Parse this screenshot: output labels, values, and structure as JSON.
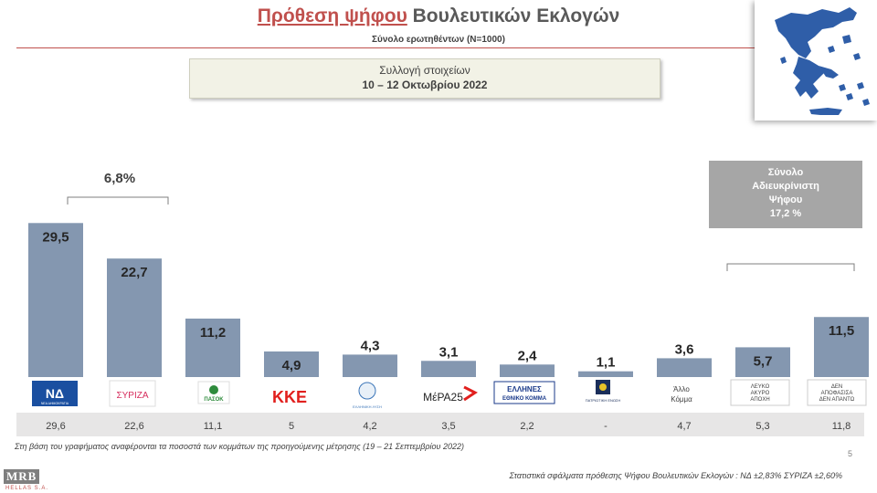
{
  "header": {
    "title_highlight": "Πρόθεση ψήφου",
    "title_rest": " Βουλευτικών Εκλογών",
    "subtitle": "Σύνολο ερωτηθέντων (N=1000)"
  },
  "collection_box": {
    "line1": "Συλλογή στοιχείων",
    "line2": "10 – 12 Οκτωβρίου 2022"
  },
  "annotations": {
    "gap_label": "6,8%",
    "undecided_box": [
      "Σύνολο",
      "Αδιευκρίνιστη",
      "Ψήφου",
      "17,2 %"
    ]
  },
  "chart_data": {
    "type": "bar",
    "categories": [
      "ΝΔ",
      "ΣΥΡΙΖΑ",
      "ΠΑΣΟΚ",
      "ΚΚΕ",
      "ΕΛΛΗΝΙΚΗ ΛΥΣΗ",
      "ΜέΡΑ25",
      "ΕΛΛΗΝΕΣ ΕΘΝΙΚΟ ΚΟΜΜΑ",
      "ΠΑΤΡΙΩΤΙΚΗ ΕΝΩΣΗ",
      "Άλλο Κόμμα",
      "ΛΕΥΚΟ ΑΚΥΡΟ ΑΠΟΧΗ",
      "ΔΕΝ ΑΠΟΦΑΣΙΣΑ ΔΕΝ ΑΠΑΝΤΩ"
    ],
    "values": [
      29.5,
      22.7,
      11.2,
      4.9,
      4.3,
      3.1,
      2.4,
      1.1,
      3.6,
      5.7,
      11.5
    ],
    "value_labels": [
      "29,5",
      "22,7",
      "11,2",
      "4,9",
      "4,3",
      "3,1",
      "2,4",
      "1,1",
      "3,6",
      "5,7",
      "11,5"
    ],
    "previous_labels": [
      "29,6",
      "22,6",
      "11,1",
      "5",
      "4,2",
      "3,5",
      "2,2",
      "-",
      "4,7",
      "5,3",
      "11,8"
    ],
    "ylim": [
      0,
      32
    ],
    "bar_color": "#8497b0"
  },
  "party_labels": {
    "nd": "ΝΕΑ ΔΗΜΟΚΡΑΤΙΑ",
    "syriza": "ΣΥΡΙΖΑ",
    "pasok": "ΠΑΣΟΚ",
    "kke": "ΚΚΕ",
    "elliniki_lysi": "ΕΛΛΗΝΙΚΗ ΛΥΣΗ",
    "mera25": "ΜέΡΑ25",
    "ellines_1": "ΕΛΛΗΝΕΣ",
    "ellines_2": "ΕΘΝΙΚΟ ΚΟΜΜΑ",
    "patriotiki": "ΠΑΤΡΙΩΤΙΚΗ ΕΝΩΣΗ",
    "allo_1": "Άλλο",
    "allo_2": "Κόμμα",
    "leyko_1": "ΛΕΥΚΟ",
    "leyko_2": "ΑΚΥΡΟ",
    "leyko_3": "ΑΠΟΧΗ",
    "den_1": "ΔΕΝ",
    "den_2": "ΑΠΟΦΑΣΙΣΑ",
    "den_3": "ΔΕΝ ΑΠΑΝΤΩ"
  },
  "footer": {
    "footnote": "Στη βάση του γραφήματος αναφέρονται τα ποσοστά των κομμάτων της προηγούμενης μέτρησης (19 – 21 Σεπτεμβρίου 2022)",
    "page_number": "5",
    "errors": "Στατιστικά σφάλματα πρόθεσης Ψήφου Βουλευτικών Εκλογών :  ΝΔ ±2,83% ΣΥΡΙΖΑ ±2,60%",
    "logo": "MRB",
    "logo_sub": "HELLAS S.A."
  },
  "colors": {
    "accent_red": "#c0504d",
    "bar": "#8497b0",
    "map_blue": "#2f5ea8"
  }
}
